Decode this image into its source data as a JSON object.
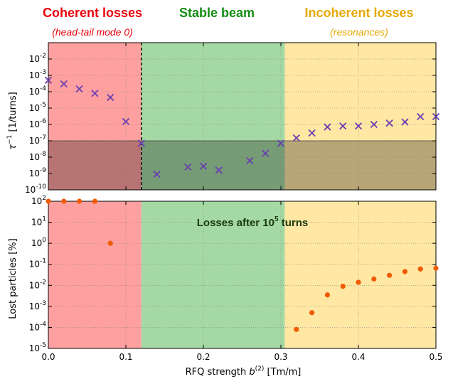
{
  "regions": {
    "coherent": {
      "title": "Coherent losses",
      "subtitle": "(head-tail mode 0)",
      "color": "#e8000a",
      "fill": "#ffa0a0"
    },
    "stable": {
      "title": "Stable beam",
      "subtitle": "",
      "color": "#148c14",
      "fill": "#a4d9a4"
    },
    "incoherent": {
      "title": "Incoherent losses",
      "subtitle": "(resonances)",
      "color": "#e6a800",
      "fill": "#ffe7a4"
    }
  },
  "chart_data": [
    {
      "type": "scatter",
      "panel": "top",
      "ylabel_main": "τ",
      "ylabel_sup": "−1",
      "ylabel_rest": " [1/turns]",
      "yscale": "log",
      "xlim": [
        0.0,
        0.5
      ],
      "ylim": [
        1e-10,
        0.1
      ],
      "ytick_labels": [
        "10-10",
        "10-9",
        "10-8",
        "10-7",
        "10-6",
        "10-5",
        "10-4",
        "10-3",
        "10-2"
      ],
      "region_bounds": {
        "coherent": [
          0.0,
          0.12
        ],
        "stable": [
          0.12,
          0.305
        ],
        "incoherent": [
          0.305,
          0.5
        ]
      },
      "threshold": 1e-07,
      "threshold_shading": "below",
      "vline_x": 0.12,
      "grid": true,
      "marker": "x",
      "series": [
        {
          "marker_color": "#6a3fb0",
          "x": [
            0.0,
            0.02,
            0.04,
            0.06,
            0.08,
            0.1,
            0.12,
            0.14,
            0.18,
            0.2,
            0.22,
            0.26,
            0.28,
            0.3,
            0.32,
            0.34,
            0.36,
            0.38,
            0.4,
            0.42,
            0.44,
            0.46,
            0.48,
            0.5
          ],
          "y": [
            0.0005,
            0.0003,
            0.00015,
            8e-05,
            4.5e-05,
            1.5e-06,
            7e-08,
            9e-10,
            2.5e-09,
            2.8e-09,
            1.6e-09,
            6e-09,
            1.7e-08,
            7e-08,
            1.5e-07,
            3e-07,
            7e-07,
            8e-07,
            8e-07,
            1e-06,
            1.2e-06,
            1.4e-06,
            3e-06,
            3e-06
          ]
        }
      ]
    },
    {
      "type": "scatter",
      "panel": "bottom",
      "ylabel": "Lost particles [%]",
      "xlabel_main": "RFQ strength ",
      "xlabel_b": "b",
      "xlabel_sup": "(2)",
      "xlabel_rest": "  [Tm/m]",
      "yscale": "log",
      "xlim": [
        0.0,
        0.5
      ],
      "ylim": [
        1e-05,
        100
      ],
      "xtick_labels": [
        "0.0",
        "0.1",
        "0.2",
        "0.3",
        "0.4",
        "0.5"
      ],
      "ytick_labels": [
        "10-5",
        "10-4",
        "10-3",
        "10-2",
        "10-1",
        "100",
        "101",
        "102"
      ],
      "region_bounds": {
        "coherent": [
          0.0,
          0.12
        ],
        "stable": [
          0.12,
          0.305
        ],
        "incoherent": [
          0.305,
          0.5
        ]
      },
      "annotation": {
        "text": "Losses after 10",
        "sup": "5",
        "rest": " turns"
      },
      "grid": true,
      "marker": "circle",
      "series": [
        {
          "marker_color": "#f05a00",
          "x": [
            0.0,
            0.02,
            0.04,
            0.06,
            0.08,
            0.32,
            0.34,
            0.36,
            0.38,
            0.4,
            0.42,
            0.44,
            0.46,
            0.48,
            0.5
          ],
          "y": [
            100,
            100,
            100,
            100,
            1.0,
            8e-05,
            0.0005,
            0.0035,
            0.009,
            0.014,
            0.02,
            0.03,
            0.045,
            0.06,
            0.065
          ]
        }
      ]
    }
  ]
}
